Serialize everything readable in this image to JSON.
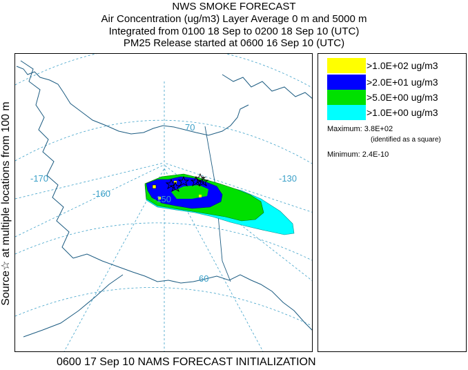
{
  "header": {
    "title": "NWS SMOKE FORECAST",
    "line2": "Air Concentration (ug/m3) Layer Average    0 m and  5000 m",
    "line3": "Integrated from 0100 18 Sep to 0200 18 Sep 10 (UTC)",
    "line4": "PM25 Release started at 0600 16 Sep 10 (UTC)"
  },
  "side_label": "Source☆ at multiple locations    from  100 m",
  "map": {
    "grid_labels": {
      "lon_170": "-170",
      "lon_160": "-160",
      "lon_150": "-150",
      "lon_130": "-130",
      "lat_70": "70",
      "lat_60": "60"
    },
    "colors": {
      "graticule": "#3ba0c8",
      "coast": "#1a5a80",
      "source_marker": "#000000"
    }
  },
  "legend": {
    "items": [
      {
        "label": ">1.0E+02 ug/m3",
        "color": "#ffff00"
      },
      {
        "label": ">2.0E+01 ug/m3",
        "color": "#0000ff"
      },
      {
        "label": ">5.0E+00 ug/m3",
        "color": "#00e000"
      },
      {
        "label": ">1.0E+00 ug/m3",
        "color": "#00ffff"
      }
    ],
    "maximum": "Maximum: 3.8E+02",
    "maximum_note": "(identified as a square)",
    "minimum": "Minimum: 2.4E-10"
  },
  "footer": "0600 17 Sep 10 NAMS FORECAST INITIALIZATION"
}
